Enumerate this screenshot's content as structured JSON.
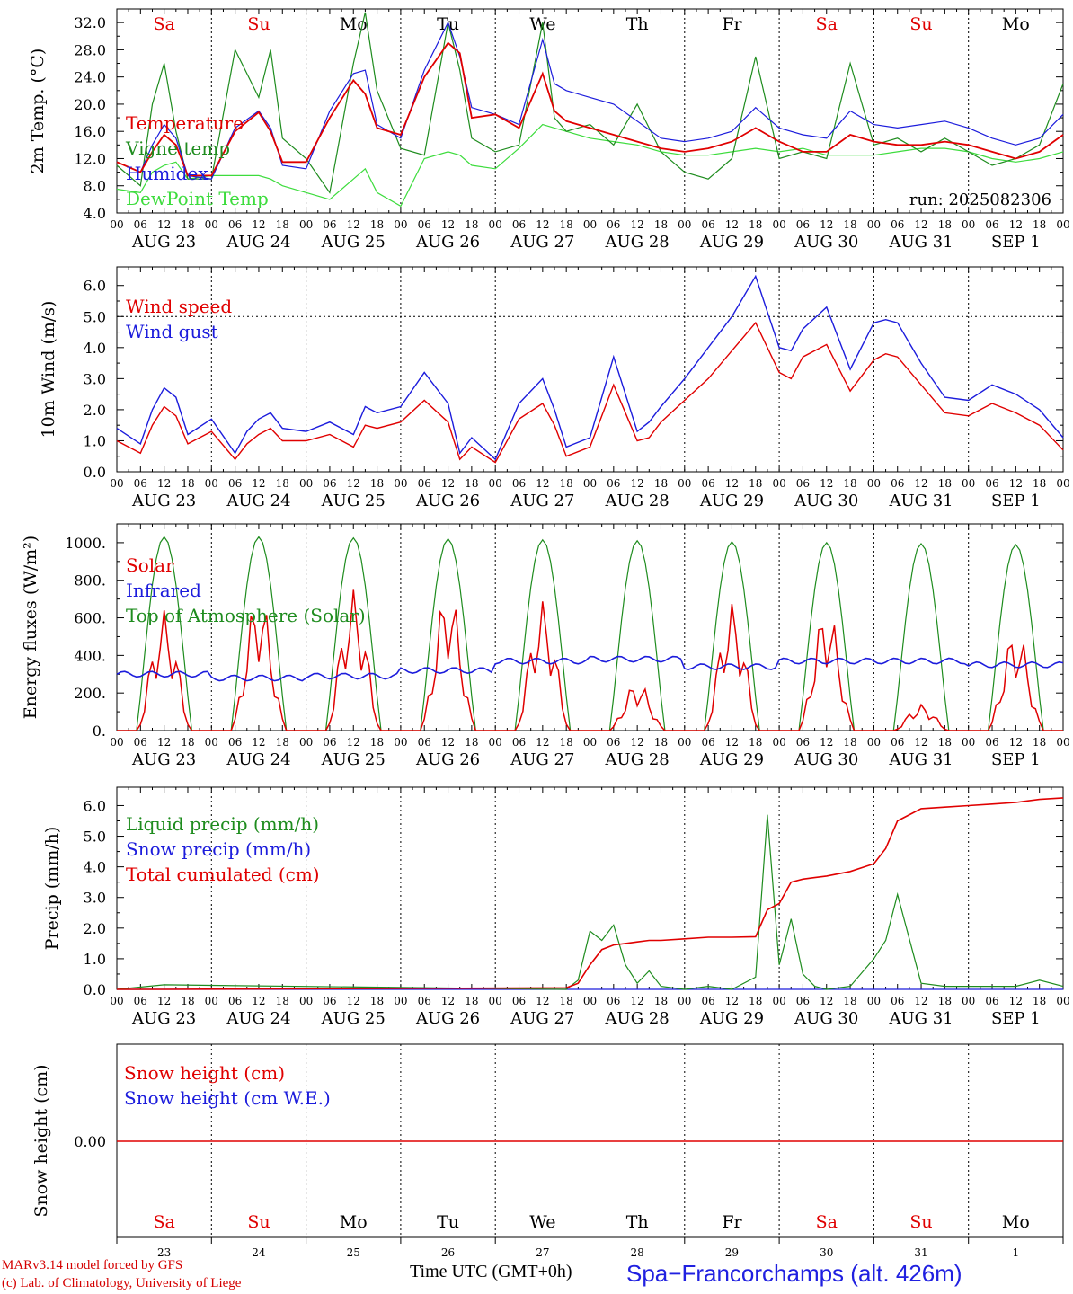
{
  "days": [
    "Sa",
    "Su",
    "Mo",
    "Tu",
    "We",
    "Th",
    "Fr",
    "Sa",
    "Su",
    "Mo"
  ],
  "day_colors": [
    "#e00000",
    "#e00000",
    "#000000",
    "#000000",
    "#000000",
    "#000000",
    "#000000",
    "#e00000",
    "#e00000",
    "#000000"
  ],
  "dates": [
    "AUG 23",
    "AUG 24",
    "AUG 25",
    "AUG 26",
    "AUG 27",
    "AUG 28",
    "AUG 29",
    "AUG 30",
    "AUG 31",
    "SEP  1"
  ],
  "date_numbers": [
    "23",
    "24",
    "25",
    "26",
    "27",
    "28",
    "29",
    "30",
    "31",
    "1"
  ],
  "hour_ticks": [
    "00",
    "06",
    "12",
    "18"
  ],
  "run_label": "run: 2025082306",
  "footer": {
    "credit_line1": "MARv3.14 model forced by GFS",
    "credit_line2": "(c) Lab. of Climatology, University of Liege",
    "time_label": "Time UTC (GMT+0h)",
    "station": "Spa−Francorchamps (alt. 426m)"
  },
  "colors": {
    "red": "#e00000",
    "green": "#1e8c1e",
    "blue": "#1c1cdc",
    "lightgreen": "#3ddc3d"
  },
  "chart_data": [
    {
      "type": "line",
      "ylabel": "2m Temp. (°C)",
      "ylim": [
        4,
        34
      ],
      "yticks": [
        "4.0",
        "8.0",
        "12.0",
        "16.0",
        "20.0",
        "24.0",
        "28.0",
        "32.0"
      ],
      "x_hours": [
        0,
        6,
        9,
        12,
        15,
        18,
        24,
        30,
        36,
        39,
        42,
        48,
        54,
        60,
        63,
        66,
        72,
        78,
        84,
        87,
        90,
        96,
        102,
        108,
        111,
        114,
        120,
        126,
        132,
        138,
        144,
        150,
        156,
        162,
        168,
        174,
        180,
        186,
        192,
        198,
        204,
        210,
        216,
        222,
        228,
        234,
        240
      ],
      "series": [
        {
          "name": "Temperature",
          "color": "red",
          "values": [
            11.5,
            10,
            13,
            15.5,
            14,
            9.5,
            9.5,
            16,
            18.8,
            16,
            11.5,
            11.5,
            18,
            23.5,
            21.5,
            16.5,
            15.5,
            24,
            29,
            27.5,
            18,
            18.5,
            16.5,
            24.5,
            19,
            17.5,
            16.5,
            15.5,
            14.5,
            13.5,
            13,
            13.5,
            14.5,
            16.5,
            14.5,
            13,
            13,
            15.5,
            14.5,
            14,
            14,
            14.5,
            14,
            13,
            12,
            13,
            15.5
          ]
        },
        {
          "name": "Vigne temp",
          "color": "green",
          "values": [
            11,
            8,
            20,
            26,
            16,
            9,
            9,
            28,
            21,
            28,
            15,
            12,
            7,
            26,
            33.5,
            22,
            13.5,
            12.5,
            32,
            25,
            15,
            13,
            14,
            32,
            18,
            16,
            17,
            14,
            20,
            13,
            10,
            9,
            12,
            27,
            12,
            13,
            12,
            26,
            14,
            15,
            13,
            15,
            13,
            11,
            12,
            14,
            23
          ]
        },
        {
          "name": "Humidex",
          "color": "blue",
          "values": [
            11.5,
            10,
            14,
            17,
            15,
            9.5,
            9,
            16.5,
            19,
            16.5,
            11,
            10.5,
            19,
            24.5,
            25,
            17,
            15,
            25,
            32,
            27,
            19.5,
            18.5,
            17,
            29.5,
            23,
            22,
            21,
            20,
            17.5,
            15,
            14.5,
            15,
            16,
            19.5,
            16.5,
            15.5,
            15,
            19,
            17,
            16.5,
            17,
            17.5,
            16.5,
            15,
            14,
            15,
            18.5
          ]
        },
        {
          "name": "DewPoint Temp",
          "color": "lightgreen",
          "values": [
            7.5,
            7,
            10,
            11,
            11.5,
            9,
            9.5,
            9.5,
            9.5,
            9,
            8,
            7,
            6,
            9,
            10.5,
            7,
            5,
            12,
            13,
            12.5,
            11,
            10.5,
            13.5,
            17,
            16.5,
            16,
            15,
            14.5,
            14,
            13,
            12.5,
            12.5,
            13,
            13.5,
            13,
            13.5,
            12.5,
            12.5,
            12.5,
            13,
            13.5,
            13.5,
            13,
            12,
            11.5,
            12,
            13
          ]
        }
      ],
      "legend_placement": "top-left"
    },
    {
      "type": "line",
      "ylabel": "10m Wind (m/s)",
      "ylim": [
        0,
        6.6
      ],
      "yticks": [
        "0.0",
        "1.0",
        "2.0",
        "3.0",
        "4.0",
        "5.0",
        "6.0"
      ],
      "ref_line": 5.0,
      "x_hours": [
        0,
        6,
        9,
        12,
        15,
        18,
        24,
        30,
        33,
        36,
        39,
        42,
        48,
        54,
        60,
        63,
        66,
        72,
        78,
        84,
        87,
        90,
        96,
        102,
        108,
        111,
        114,
        120,
        126,
        132,
        135,
        138,
        144,
        150,
        156,
        162,
        168,
        171,
        174,
        180,
        186,
        192,
        195,
        198,
        204,
        210,
        216,
        222,
        228,
        234,
        240
      ],
      "series": [
        {
          "name": "Wind speed",
          "color": "red",
          "values": [
            1.0,
            0.6,
            1.5,
            2.1,
            1.8,
            0.9,
            1.3,
            0.4,
            0.9,
            1.2,
            1.4,
            1.0,
            1.0,
            1.2,
            0.8,
            1.5,
            1.4,
            1.6,
            2.3,
            1.6,
            0.4,
            0.8,
            0.3,
            1.7,
            2.2,
            1.5,
            0.5,
            0.8,
            2.8,
            1.0,
            1.1,
            1.6,
            2.3,
            3.0,
            3.9,
            4.8,
            3.2,
            3.0,
            3.7,
            4.1,
            2.6,
            3.6,
            3.8,
            3.7,
            2.8,
            1.9,
            1.8,
            2.2,
            1.9,
            1.5,
            0.7
          ]
        },
        {
          "name": "Wind gust",
          "color": "blue",
          "values": [
            1.4,
            0.9,
            2.0,
            2.7,
            2.4,
            1.2,
            1.7,
            0.6,
            1.3,
            1.7,
            1.9,
            1.4,
            1.3,
            1.6,
            1.2,
            2.1,
            1.9,
            2.1,
            3.2,
            2.2,
            0.6,
            1.1,
            0.4,
            2.2,
            3.0,
            2.0,
            0.8,
            1.1,
            3.7,
            1.3,
            1.6,
            2.1,
            3.0,
            4.0,
            5.0,
            6.3,
            4.0,
            3.9,
            4.6,
            5.3,
            3.3,
            4.8,
            4.9,
            4.8,
            3.5,
            2.4,
            2.3,
            2.8,
            2.5,
            2.0,
            1.1
          ]
        }
      ],
      "legend_placement": "top-left"
    },
    {
      "type": "line",
      "ylabel": "Energy fluxes (W/m²)",
      "ylim": [
        0,
        1100
      ],
      "yticks": [
        "0.",
        "200.",
        "400.",
        "600.",
        "800.",
        "1000."
      ],
      "daily": {
        "toa_peak": [
          1030,
          1030,
          1025,
          1020,
          1015,
          1010,
          1005,
          1000,
          995,
          990
        ],
        "solar_peak": [
          640,
          730,
          750,
          760,
          690,
          260,
          680,
          660,
          140,
          540
        ],
        "infrared_level": [
          300,
          280,
          290,
          320,
          370,
          380,
          340,
          370,
          370,
          350
        ]
      },
      "series_names": [
        {
          "name": "Solar",
          "color": "red"
        },
        {
          "name": "Infrared",
          "color": "blue"
        },
        {
          "name": "Top of Atmosphere (Solar)",
          "color": "green"
        }
      ],
      "legend_placement": "top-left"
    },
    {
      "type": "line",
      "ylabel": "Precip (mm/h)",
      "ylim": [
        0,
        6.6
      ],
      "yticks": [
        "0.0",
        "1.0",
        "2.0",
        "3.0",
        "4.0",
        "5.0",
        "6.0"
      ],
      "x_hours": [
        0,
        12,
        114,
        117,
        120,
        123,
        126,
        129,
        132,
        135,
        138,
        144,
        150,
        156,
        162,
        165,
        168,
        171,
        174,
        177,
        180,
        186,
        192,
        195,
        198,
        204,
        210,
        216,
        222,
        228,
        234,
        240
      ],
      "series": [
        {
          "name": "Liquid precip (mm/h)",
          "color": "green",
          "values": [
            0,
            0.15,
            0,
            0.3,
            1.9,
            1.6,
            2.1,
            0.8,
            0.2,
            0.6,
            0.1,
            0,
            0.1,
            0,
            0.4,
            5.7,
            0.8,
            2.3,
            0.5,
            0.1,
            0,
            0.1,
            1.0,
            1.6,
            3.1,
            0.2,
            0.1,
            0.1,
            0.1,
            0.1,
            0.3,
            0.1
          ]
        },
        {
          "name": "Snow precip (mm/h)",
          "color": "blue",
          "values": [
            0,
            0,
            0,
            0,
            0,
            0,
            0,
            0,
            0,
            0,
            0,
            0,
            0,
            0,
            0,
            0,
            0,
            0,
            0,
            0,
            0,
            0,
            0,
            0,
            0,
            0,
            0,
            0,
            0,
            0,
            0,
            0
          ]
        },
        {
          "name": "Total cumulated (cm)",
          "color": "red",
          "values": [
            0,
            0,
            0.05,
            0.2,
            0.8,
            1.3,
            1.45,
            1.5,
            1.55,
            1.6,
            1.6,
            1.65,
            1.7,
            1.7,
            1.72,
            2.6,
            2.8,
            3.5,
            3.6,
            3.65,
            3.7,
            3.85,
            4.1,
            4.6,
            5.5,
            5.9,
            5.95,
            6.0,
            6.05,
            6.1,
            6.2,
            6.25
          ]
        }
      ],
      "legend_placement": "top-left"
    },
    {
      "type": "line",
      "ylabel": "Snow height (cm)",
      "yticks": [
        "0.00"
      ],
      "series": [
        {
          "name": "Snow height (cm)",
          "color": "red",
          "values": [
            0,
            0
          ]
        },
        {
          "name": "Snow height (cm W.E.)",
          "color": "blue",
          "values": [
            0,
            0
          ]
        }
      ],
      "legend_placement": "top-left"
    }
  ]
}
